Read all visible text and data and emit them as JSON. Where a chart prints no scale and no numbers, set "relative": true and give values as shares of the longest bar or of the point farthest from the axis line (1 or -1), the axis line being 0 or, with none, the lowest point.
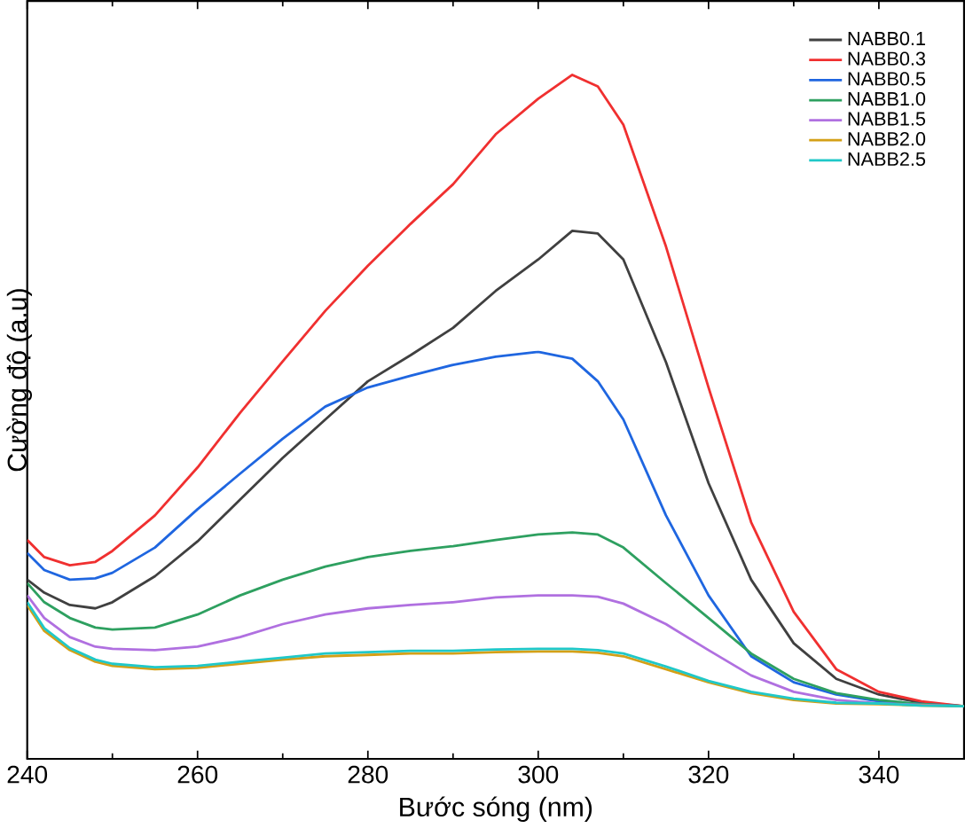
{
  "chart_data": {
    "type": "line",
    "relative": true,
    "xlabel": "Bước sóng (nm)",
    "ylabel": "Cường độ (a.u)",
    "xlim": [
      240,
      350
    ],
    "xticks": [
      240,
      260,
      280,
      300,
      320,
      340
    ],
    "legend": "top right",
    "marker": "none",
    "line_style": "solid",
    "x": [
      240,
      242,
      245,
      248,
      250,
      255,
      260,
      265,
      270,
      275,
      280,
      285,
      290,
      295,
      300,
      304,
      307,
      310,
      315,
      320,
      325,
      330,
      335,
      340,
      345,
      350
    ],
    "series": [
      {
        "name": "NABB0.1",
        "color": "#404040",
        "values": [
          0.262,
          0.243,
          0.225,
          0.22,
          0.229,
          0.267,
          0.318,
          0.379,
          0.44,
          0.496,
          0.552,
          0.59,
          0.63,
          0.684,
          0.73,
          0.772,
          0.768,
          0.73,
          0.58,
          0.403,
          0.262,
          0.169,
          0.117,
          0.094,
          0.082,
          0.077
        ]
      },
      {
        "name": "NABB0.3",
        "color": "#f03030",
        "values": [
          0.32,
          0.295,
          0.283,
          0.288,
          0.304,
          0.356,
          0.426,
          0.506,
          0.581,
          0.655,
          0.721,
          0.782,
          0.84,
          0.913,
          0.965,
          1,
          0.983,
          0.927,
          0.749,
          0.543,
          0.346,
          0.215,
          0.131,
          0.098,
          0.084,
          0.077
        ]
      },
      {
        "name": "NABB0.5",
        "color": "#1f66e0",
        "values": [
          0.301,
          0.276,
          0.262,
          0.264,
          0.272,
          0.309,
          0.365,
          0.417,
          0.468,
          0.515,
          0.543,
          0.56,
          0.576,
          0.588,
          0.595,
          0.585,
          0.552,
          0.496,
          0.356,
          0.239,
          0.15,
          0.112,
          0.094,
          0.084,
          0.08,
          0.077
        ]
      },
      {
        "name": "NABB1.0",
        "color": "#2ea060",
        "values": [
          0.257,
          0.229,
          0.206,
          0.192,
          0.189,
          0.192,
          0.211,
          0.239,
          0.262,
          0.281,
          0.295,
          0.304,
          0.311,
          0.32,
          0.328,
          0.331,
          0.328,
          0.309,
          0.257,
          0.206,
          0.154,
          0.117,
          0.096,
          0.086,
          0.08,
          0.077
        ]
      },
      {
        "name": "NABB1.5",
        "color": "#b070e0",
        "values": [
          0.239,
          0.206,
          0.178,
          0.164,
          0.161,
          0.159,
          0.164,
          0.178,
          0.197,
          0.211,
          0.22,
          0.225,
          0.229,
          0.236,
          0.239,
          0.239,
          0.237,
          0.227,
          0.197,
          0.159,
          0.122,
          0.098,
          0.086,
          0.081,
          0.079,
          0.077
        ]
      },
      {
        "name": "NABB2.0",
        "color": "#d4a017",
        "values": [
          0.225,
          0.187,
          0.159,
          0.142,
          0.136,
          0.131,
          0.133,
          0.139,
          0.145,
          0.15,
          0.152,
          0.154,
          0.154,
          0.156,
          0.157,
          0.157,
          0.155,
          0.15,
          0.131,
          0.112,
          0.096,
          0.086,
          0.081,
          0.08,
          0.078,
          0.077
        ]
      },
      {
        "name": "NABB2.5",
        "color": "#20c8c8",
        "values": [
          0.229,
          0.191,
          0.162,
          0.145,
          0.139,
          0.134,
          0.136,
          0.142,
          0.148,
          0.154,
          0.156,
          0.158,
          0.158,
          0.16,
          0.161,
          0.161,
          0.159,
          0.154,
          0.135,
          0.114,
          0.098,
          0.088,
          0.082,
          0.081,
          0.078,
          0.077
        ]
      }
    ]
  }
}
